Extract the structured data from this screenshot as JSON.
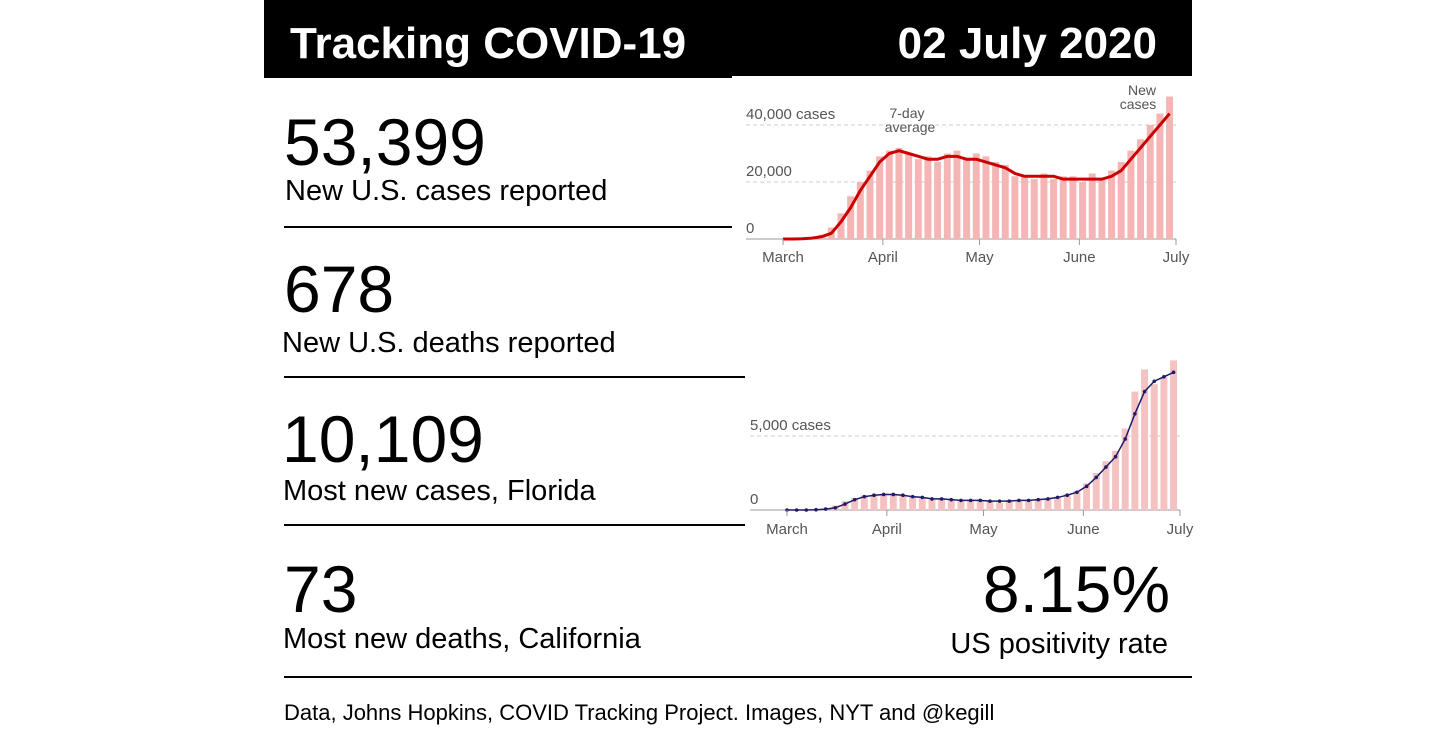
{
  "header": {
    "title": "Tracking COVID-19",
    "date": "02 July 2020"
  },
  "stats": [
    {
      "value": "53,399",
      "label": "New U.S. cases reported"
    },
    {
      "value": "678",
      "label": "New U.S. deaths reported"
    },
    {
      "value": "10,109",
      "label": "Most new cases, Florida"
    },
    {
      "value": "73",
      "label": "Most new deaths, California"
    }
  ],
  "positivity": {
    "value": "8.15%",
    "label": "US positivity rate"
  },
  "footer": "Data, Johns Hopkins, COVID Tracking Project. Images, NYT and @kegill",
  "chart_data": [
    {
      "type": "bar",
      "annotations": [
        "New",
        "cases",
        "7-day",
        "average"
      ],
      "x": [
        0,
        3,
        6,
        9,
        12,
        15,
        18,
        21,
        24,
        27,
        30,
        33,
        36,
        39,
        42,
        45,
        48,
        51,
        54,
        57,
        60,
        63,
        66,
        69,
        72,
        75,
        78,
        81,
        84,
        87,
        90,
        93,
        96,
        99,
        102,
        105,
        108,
        111,
        114,
        117,
        120
      ],
      "xlim": [
        0,
        122
      ],
      "xticks": [
        {
          "value": 0,
          "label": "March"
        },
        {
          "value": 31,
          "label": "April"
        },
        {
          "value": 61,
          "label": "May"
        },
        {
          "value": 92,
          "label": "June"
        },
        {
          "value": 122,
          "label": "July"
        }
      ],
      "ylim": [
        0,
        50000
      ],
      "yticks": [
        0,
        {
          "value": 20000,
          "label": "20,000"
        },
        {
          "value": 40000,
          "label": "40,000 cases"
        }
      ],
      "series": [
        {
          "style": "bar",
          "color": "#f5b5b5",
          "values": [
            0,
            100,
            300,
            600,
            1500,
            4000,
            9000,
            15000,
            20000,
            24000,
            29000,
            31000,
            32000,
            30000,
            28000,
            29000,
            27000,
            30000,
            31000,
            28000,
            30000,
            29000,
            27000,
            26000,
            22000,
            22000,
            21000,
            23000,
            21000,
            22000,
            22000,
            20000,
            23000,
            21000,
            24000,
            27000,
            31000,
            35000,
            40000,
            44000,
            50000
          ]
        },
        {
          "style": "line",
          "color": "#cc0000",
          "values": [
            0,
            0,
            100,
            300,
            800,
            2000,
            6000,
            11000,
            17000,
            22000,
            27000,
            30000,
            31000,
            30000,
            29000,
            28000,
            28000,
            29000,
            29000,
            28000,
            28000,
            27000,
            26000,
            25000,
            23000,
            22000,
            22000,
            22000,
            22000,
            21000,
            21000,
            21000,
            21000,
            21000,
            22000,
            24000,
            28000,
            32000,
            36000,
            40000,
            44000
          ]
        }
      ]
    },
    {
      "type": "bar",
      "x": [
        0,
        3,
        6,
        9,
        12,
        15,
        18,
        21,
        24,
        27,
        30,
        33,
        36,
        39,
        42,
        45,
        48,
        51,
        54,
        57,
        60,
        63,
        66,
        69,
        72,
        75,
        78,
        81,
        84,
        87,
        90,
        93,
        96,
        99,
        102,
        105,
        108,
        111,
        114,
        117,
        120
      ],
      "xlim": [
        0,
        122
      ],
      "xticks": [
        {
          "value": 0,
          "label": "March"
        },
        {
          "value": 31,
          "label": "April"
        },
        {
          "value": 61,
          "label": "May"
        },
        {
          "value": 92,
          "label": "June"
        },
        {
          "value": 122,
          "label": "July"
        }
      ],
      "ylim": [
        0,
        13000
      ],
      "yticks": [
        0,
        {
          "value": 5000,
          "label": "5,000 cases"
        }
      ],
      "series": [
        {
          "style": "bar",
          "color": "#f5c2c2",
          "values": [
            0,
            0,
            10,
            40,
            100,
            300,
            600,
            800,
            1000,
            1000,
            1100,
            1100,
            1000,
            900,
            800,
            700,
            800,
            700,
            600,
            700,
            600,
            600,
            500,
            700,
            600,
            700,
            700,
            800,
            900,
            1100,
            1300,
            1800,
            2500,
            3300,
            4000,
            5500,
            8000,
            9500,
            8500,
            9000,
            10109
          ]
        },
        {
          "style": "line",
          "markers": true,
          "color": "#1c1c6b",
          "values": [
            0,
            0,
            0,
            20,
            60,
            150,
            400,
            700,
            900,
            1000,
            1050,
            1050,
            1000,
            900,
            850,
            750,
            750,
            700,
            650,
            650,
            650,
            600,
            600,
            600,
            650,
            650,
            700,
            750,
            850,
            1000,
            1200,
            1600,
            2200,
            2900,
            3600,
            4800,
            6500,
            8000,
            8700,
            9000,
            9300
          ]
        }
      ]
    }
  ]
}
